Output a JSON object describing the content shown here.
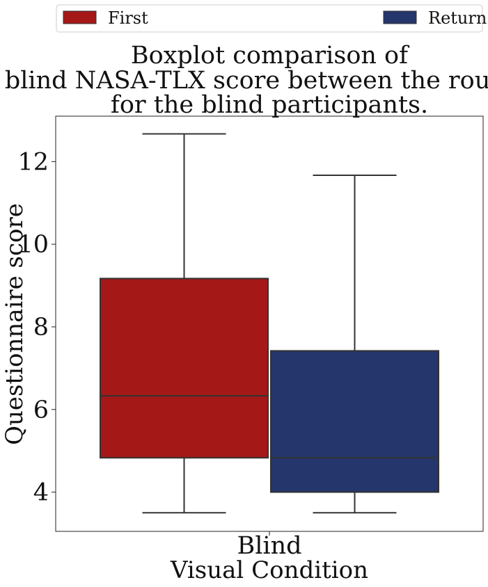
{
  "chart_data": {
    "type": "boxplot",
    "title": [
      "Boxplot comparison of",
      "blind NASA-TLX score between the rounds",
      "for the blind participants."
    ],
    "xlabel": "Visual Condition",
    "ylabel": "Questionnaire score",
    "categories": [
      "Blind"
    ],
    "ylim": [
      3.05,
      13.1
    ],
    "yticks": [
      4,
      6,
      8,
      10,
      12
    ],
    "grid": false,
    "legend_position": "top",
    "series": [
      {
        "name": "First",
        "color": "#a51818",
        "boxes": [
          {
            "category": "Blind",
            "whisker_low": 3.5,
            "q1": 4.83,
            "median": 6.33,
            "q3": 9.17,
            "whisker_high": 12.67
          }
        ]
      },
      {
        "name": "Return",
        "color": "#24366b",
        "boxes": [
          {
            "category": "Blind",
            "whisker_low": 3.5,
            "q1": 4.0,
            "median": 4.83,
            "q3": 7.42,
            "whisker_high": 11.67
          }
        ]
      }
    ]
  }
}
